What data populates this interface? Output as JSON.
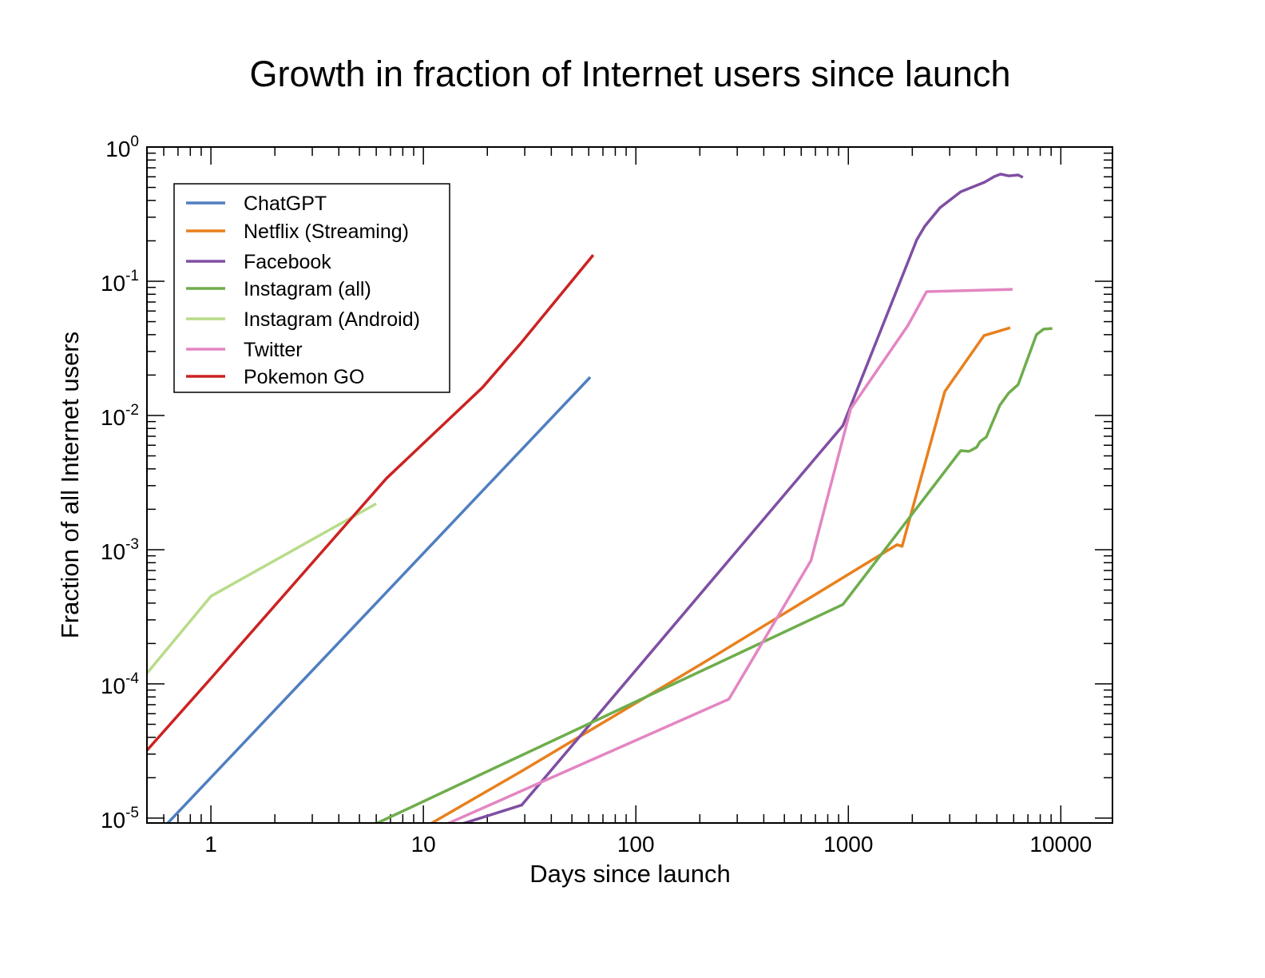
{
  "chart_data": {
    "type": "line",
    "title": "Growth in fraction of Internet users since launch",
    "xlabel": "Days since launch",
    "ylabel": "Fraction of all Internet users",
    "xscale": "log",
    "yscale": "log",
    "xlim": [
      0.5,
      17500
    ],
    "ylim": [
      9.2e-06,
      1
    ],
    "x_ticks": [
      {
        "value": 1,
        "label": "1"
      },
      {
        "value": 10,
        "label": "10"
      },
      {
        "value": 100,
        "label": "100"
      },
      {
        "value": 1000,
        "label": "1000"
      },
      {
        "value": 10000,
        "label": "10000"
      }
    ],
    "y_ticks": [
      {
        "value": 1,
        "base": "10",
        "exp": "0"
      },
      {
        "value": 0.1,
        "base": "10",
        "exp": "-1"
      },
      {
        "value": 0.01,
        "base": "10",
        "exp": "-2"
      },
      {
        "value": 0.001,
        "base": "10",
        "exp": "-3"
      },
      {
        "value": 0.0001,
        "base": "10",
        "exp": "-4"
      },
      {
        "value": 1e-05,
        "base": "10",
        "exp": "-5"
      }
    ],
    "grid": false,
    "legend_position": "top-left",
    "series": [
      {
        "name": "ChatGPT",
        "color": "#4f7fbf",
        "points": [
          [
            0.5,
            6.3e-06
          ],
          [
            61,
            0.0193
          ]
        ]
      },
      {
        "name": "Netflix (Streaming)",
        "color": "#e8801e",
        "points": [
          [
            10.7,
            9e-06
          ],
          [
            29,
            2.24e-05
          ],
          [
            207,
            0.000143
          ],
          [
            1694,
            0.00109
          ],
          [
            1790,
            0.00106
          ],
          [
            2845,
            0.0151
          ],
          [
            4350,
            0.0394
          ],
          [
            5780,
            0.045
          ]
        ]
      },
      {
        "name": "Facebook",
        "color": "#7f4fa3",
        "points": [
          [
            15,
            9e-06
          ],
          [
            29,
            1.25e-05
          ],
          [
            942,
            0.0084
          ],
          [
            2100,
            0.204
          ],
          [
            2290,
            0.257
          ],
          [
            2700,
            0.353
          ],
          [
            3380,
            0.464
          ],
          [
            4380,
            0.547
          ],
          [
            4860,
            0.602
          ],
          [
            5210,
            0.628
          ],
          [
            5680,
            0.61
          ],
          [
            6300,
            0.619
          ],
          [
            6630,
            0.594
          ]
        ]
      },
      {
        "name": "Instagram (all)",
        "color": "#6ead4c",
        "points": [
          [
            5.9,
            9e-06
          ],
          [
            942,
            0.00039
          ],
          [
            3380,
            0.00547
          ],
          [
            3700,
            0.0054
          ],
          [
            4020,
            0.0058
          ],
          [
            4170,
            0.0064
          ],
          [
            4460,
            0.0069
          ],
          [
            5160,
            0.0119
          ],
          [
            5680,
            0.0147
          ],
          [
            6300,
            0.017
          ],
          [
            7680,
            0.04
          ],
          [
            8300,
            0.044
          ],
          [
            9120,
            0.0445
          ]
        ]
      },
      {
        "name": "Instagram (Android)",
        "color": "#b8dc8a",
        "points": [
          [
            0.5,
            0.00012
          ],
          [
            1,
            0.00045
          ],
          [
            6,
            0.0022
          ]
        ]
      },
      {
        "name": "Twitter",
        "color": "#e386c2",
        "points": [
          [
            12.8,
            9e-06
          ],
          [
            274,
            7.7e-05
          ],
          [
            667,
            0.00083
          ],
          [
            1026,
            0.0112
          ],
          [
            1910,
            0.047
          ],
          [
            2333,
            0.0837
          ],
          [
            5930,
            0.087
          ]
        ]
      },
      {
        "name": "Pokemon GO",
        "color": "#cc2222",
        "points": [
          [
            0.5,
            3.2e-05
          ],
          [
            1,
            0.00011
          ],
          [
            6.7,
            0.0034
          ],
          [
            19,
            0.0162
          ],
          [
            28.5,
            0.034
          ],
          [
            63,
            0.157
          ]
        ]
      }
    ]
  }
}
